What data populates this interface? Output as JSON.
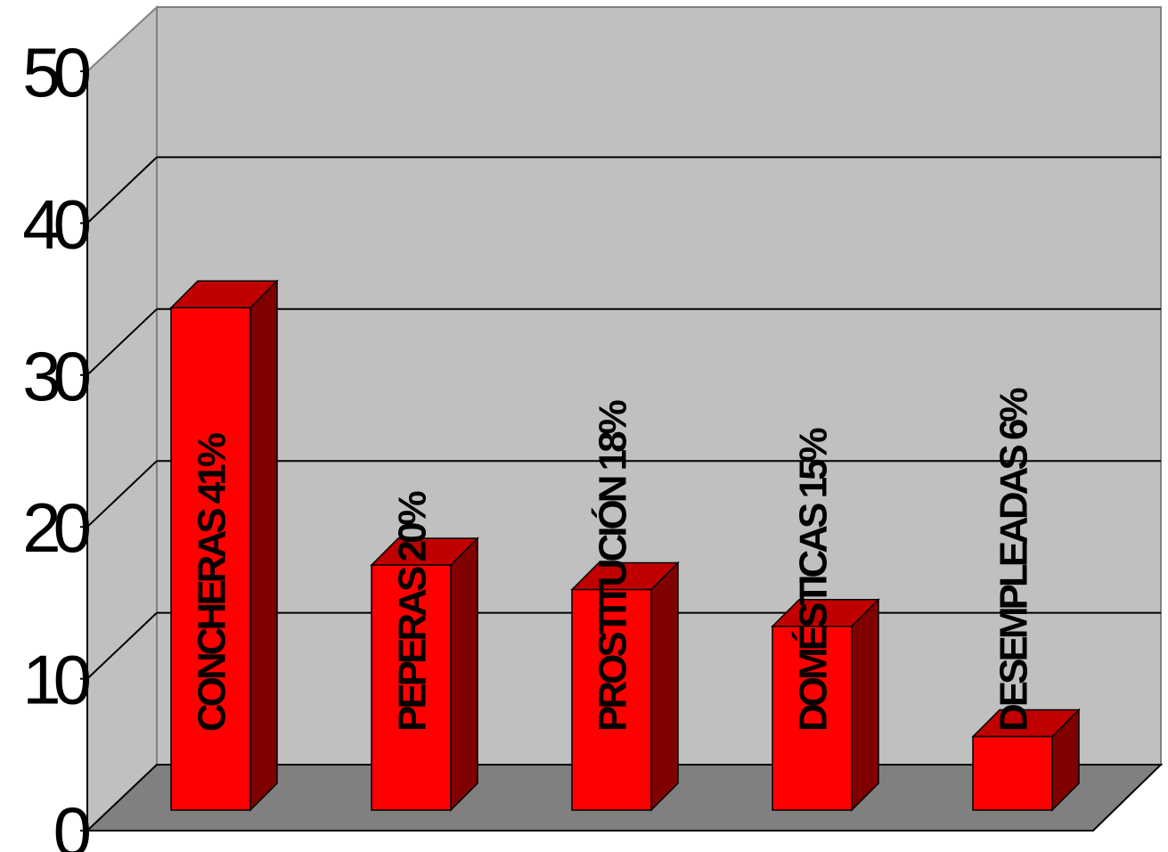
{
  "chart_data": {
    "type": "bar",
    "categories": [
      "CONCHERAS",
      "PEPERAS",
      "PROSTITUCIÓN",
      "DOMÉSTICAS",
      "DESEMPLEADAS"
    ],
    "values": [
      41,
      20,
      18,
      15,
      6
    ],
    "bar_labels": [
      "CONCHERAS 41%",
      "PEPERAS 20%",
      "PROSTITUCIÓN 18%",
      "DOMÉSTICAS 15%",
      "DESEMPLEADAS 6%"
    ],
    "yticks": [
      "0",
      "10",
      "20",
      "30",
      "40",
      "50"
    ],
    "ylim": [
      0,
      50
    ],
    "title": "",
    "xlabel": "",
    "ylabel": "",
    "grid": true,
    "legend": "none",
    "colors": {
      "bar_front": "#ff0000",
      "bar_top": "#c00000",
      "bar_side": "#800000",
      "wall": "#c0c0c0",
      "floor": "#808080",
      "gridline": "#000000"
    }
  }
}
